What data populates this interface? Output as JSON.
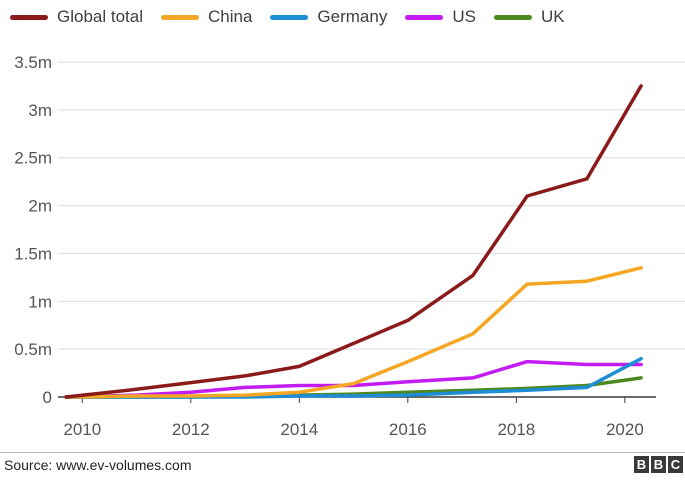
{
  "chart_data": {
    "type": "line",
    "x": [
      2009.7,
      2011,
      2012,
      2013,
      2014,
      2015,
      2016,
      2017.2,
      2018.2,
      2019.3,
      2020.3
    ],
    "series": [
      {
        "name": "Global total",
        "color": "#8b1a1a",
        "values": [
          0,
          0.08,
          0.15,
          0.22,
          0.32,
          0.56,
          0.8,
          1.27,
          2.1,
          2.28,
          3.25
        ]
      },
      {
        "name": "China",
        "color": "#f5a623",
        "values": [
          0,
          0.01,
          0.01,
          0.02,
          0.05,
          0.14,
          0.37,
          0.66,
          1.18,
          1.21,
          1.35
        ]
      },
      {
        "name": "Germany",
        "color": "#1f8dd6",
        "values": [
          0,
          0.0,
          0.0,
          0.0,
          0.01,
          0.01,
          0.02,
          0.05,
          0.07,
          0.1,
          0.4
        ]
      },
      {
        "name": "US",
        "color": "#c21cf2",
        "values": [
          0,
          0.02,
          0.05,
          0.1,
          0.12,
          0.12,
          0.16,
          0.2,
          0.37,
          0.34,
          0.34
        ]
      },
      {
        "name": "UK",
        "color": "#4a8a1f",
        "values": [
          0,
          0.0,
          0.0,
          0.01,
          0.02,
          0.03,
          0.05,
          0.07,
          0.09,
          0.12,
          0.2
        ]
      }
    ],
    "y_ticks": [
      {
        "value": 3.5,
        "label": "3.5m"
      },
      {
        "value": 3,
        "label": "3m"
      },
      {
        "value": 2.5,
        "label": "2.5m"
      },
      {
        "value": 2,
        "label": "2m"
      },
      {
        "value": 1.5,
        "label": "1.5m"
      },
      {
        "value": 1,
        "label": "1m"
      },
      {
        "value": 0.5,
        "label": "0.5m"
      },
      {
        "value": 0,
        "label": "0"
      }
    ],
    "x_ticks": [
      {
        "value": 2010,
        "label": "2010"
      },
      {
        "value": 2012,
        "label": "2012"
      },
      {
        "value": 2014,
        "label": "2014"
      },
      {
        "value": 2016,
        "label": "2016"
      },
      {
        "value": 2018,
        "label": "2018"
      },
      {
        "value": 2020,
        "label": "2020"
      }
    ],
    "ylim": [
      0,
      3.5
    ],
    "xlim": [
      2009.7,
      2020.5
    ],
    "grid": true,
    "legend_position": "top-left"
  },
  "footer": {
    "source": "Source: www.ev-volumes.com",
    "logo_letters": [
      "B",
      "B",
      "C"
    ]
  }
}
